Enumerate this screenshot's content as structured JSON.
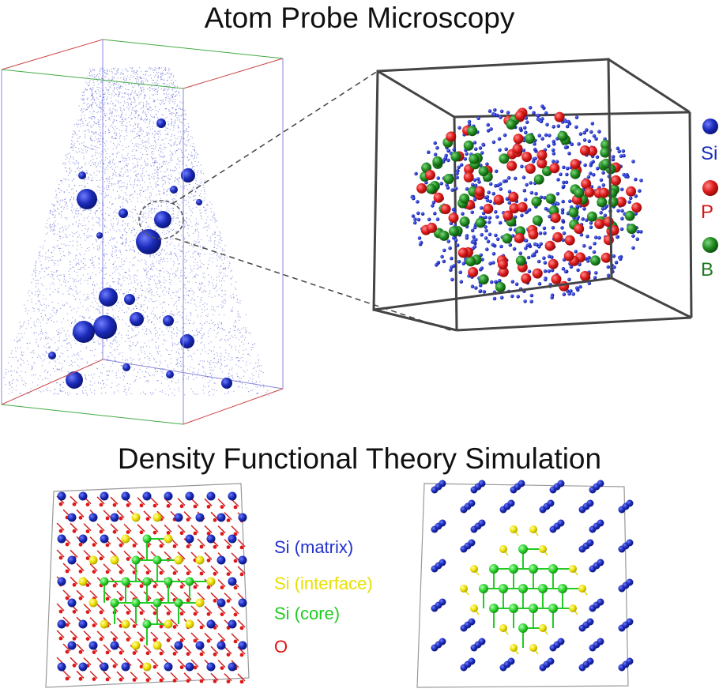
{
  "titles": {
    "top": "Atom Probe Microscopy",
    "bottom": "Density Functional Theory Simulation"
  },
  "apt_legend": [
    {
      "symbol": "Si",
      "color": "#1a2eb8"
    },
    {
      "symbol": "P",
      "color": "#d01818"
    },
    {
      "symbol": "B",
      "color": "#1f7a1f"
    }
  ],
  "dft_legend": [
    {
      "label": "Si (matrix)",
      "color": "#2233cc"
    },
    {
      "label": "Si (interface)",
      "color": "#e8e000"
    },
    {
      "label": "Si (core)",
      "color": "#22cc22"
    },
    {
      "label": "O",
      "color": "#e01010"
    }
  ],
  "colors": {
    "si_matrix": "#2a3ad0",
    "si_interface": "#f0e800",
    "si_core": "#2ed42e",
    "oxygen": "#e01818",
    "apt_cloud": "#3a46c8",
    "box_edge": "#444444"
  }
}
